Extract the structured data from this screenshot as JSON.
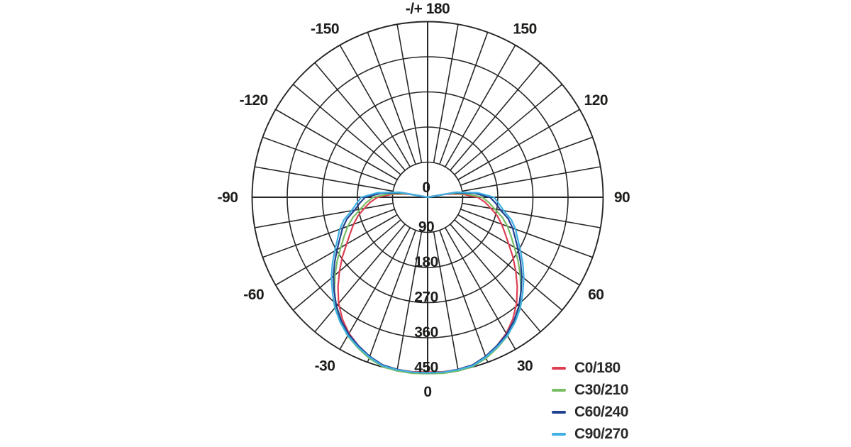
{
  "chart_data": {
    "type": "line",
    "subtype": "polar-photometric",
    "title": "",
    "angle_unit": "degrees from nadir",
    "radial_unit": "cd",
    "radial_ticks": [
      0,
      90,
      180,
      270,
      360,
      450
    ],
    "radial_max": 450,
    "ring_count": 5,
    "spoke_step_deg": 10,
    "angle_labels": [
      {
        "text": "-/+ 180",
        "angle": 180
      },
      {
        "text": "150",
        "angle": 150
      },
      {
        "text": "120",
        "angle": 120
      },
      {
        "text": "90",
        "angle": 90
      },
      {
        "text": "60",
        "angle": 60
      },
      {
        "text": "30",
        "angle": 30
      },
      {
        "text": "0",
        "angle": 0
      },
      {
        "text": "-30",
        "angle": -30
      },
      {
        "text": "-60",
        "angle": -60
      },
      {
        "text": "-90",
        "angle": -90
      },
      {
        "text": "-120",
        "angle": -120
      },
      {
        "text": "-150",
        "angle": -150
      }
    ],
    "sample_angles_deg": [
      0,
      5,
      10,
      15,
      20,
      25,
      30,
      35,
      40,
      45,
      50,
      55,
      60,
      65,
      70,
      75,
      80,
      85,
      90,
      95,
      100,
      105
    ],
    "series": [
      {
        "name": "C0/180",
        "color": "#dd4053",
        "values": [
          448,
          449,
          448,
          445,
          435,
          420,
          403,
          381,
          355,
          325,
          295,
          267,
          240,
          219,
          202,
          185,
          165,
          148,
          128,
          90,
          48,
          0
        ]
      },
      {
        "name": "C30/210",
        "color": "#79bd65",
        "values": [
          452,
          453,
          452,
          449,
          439,
          425,
          410,
          390,
          366,
          338,
          310,
          283,
          257,
          236,
          218,
          198,
          175,
          158,
          140,
          100,
          55,
          0
        ]
      },
      {
        "name": "C60/240",
        "color": "#20418f",
        "values": [
          450,
          450,
          448,
          445,
          434,
          420,
          405,
          386,
          364,
          339,
          315,
          291,
          268,
          248,
          232,
          214,
          190,
          175,
          160,
          120,
          68,
          0
        ]
      },
      {
        "name": "C90/270",
        "color": "#3fb0e4",
        "values": [
          450,
          450,
          449,
          447,
          436,
          423,
          409,
          391,
          370,
          345,
          322,
          298,
          275,
          255,
          240,
          222,
          198,
          183,
          170,
          130,
          75,
          0
        ]
      }
    ],
    "legend_position": "bottom-right",
    "grid": true
  },
  "legend": {
    "items": [
      {
        "label": "C0/180",
        "color": "#dd4053"
      },
      {
        "label": "C30/210",
        "color": "#79bd65"
      },
      {
        "label": "C60/240",
        "color": "#20418f"
      },
      {
        "label": "C90/270",
        "color": "#3fb0e4"
      }
    ]
  },
  "colors": {
    "background": "#ffffff",
    "grid": "#262626",
    "text": "#1d1d1b"
  }
}
